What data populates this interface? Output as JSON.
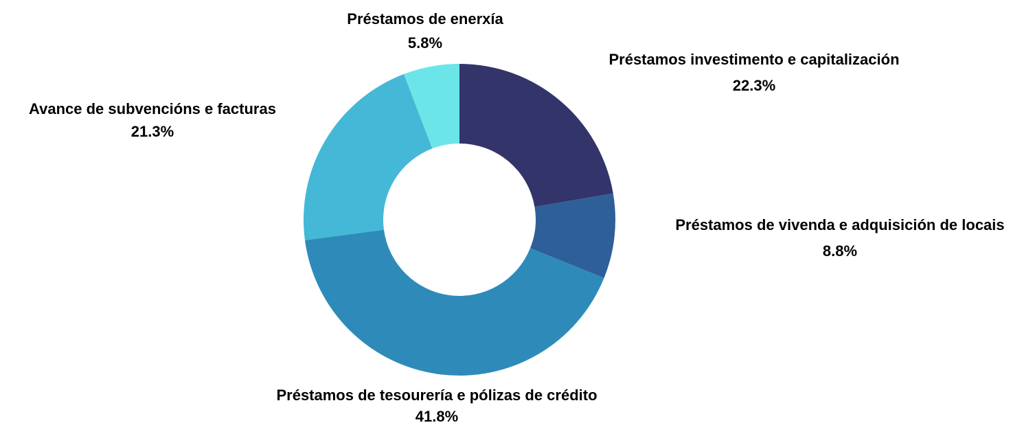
{
  "chart_data": {
    "type": "donut",
    "categories": [
      "Préstamos investimento e capitalización",
      "Préstamos de vivenda e adquisición de locais",
      "Préstamos de tesourería e pólizas de crédito",
      "Avance de subvencións e facturas",
      "Préstamos de enerxía"
    ],
    "values": [
      22.3,
      8.8,
      41.8,
      21.3,
      5.8
    ],
    "value_labels": [
      "22.3%",
      "8.8%",
      "41.8%",
      "21.3%",
      "5.8%"
    ],
    "colors": [
      "#32346a",
      "#2e5f98",
      "#2e8bb9",
      "#44b8d6",
      "#6ce5e8"
    ]
  }
}
